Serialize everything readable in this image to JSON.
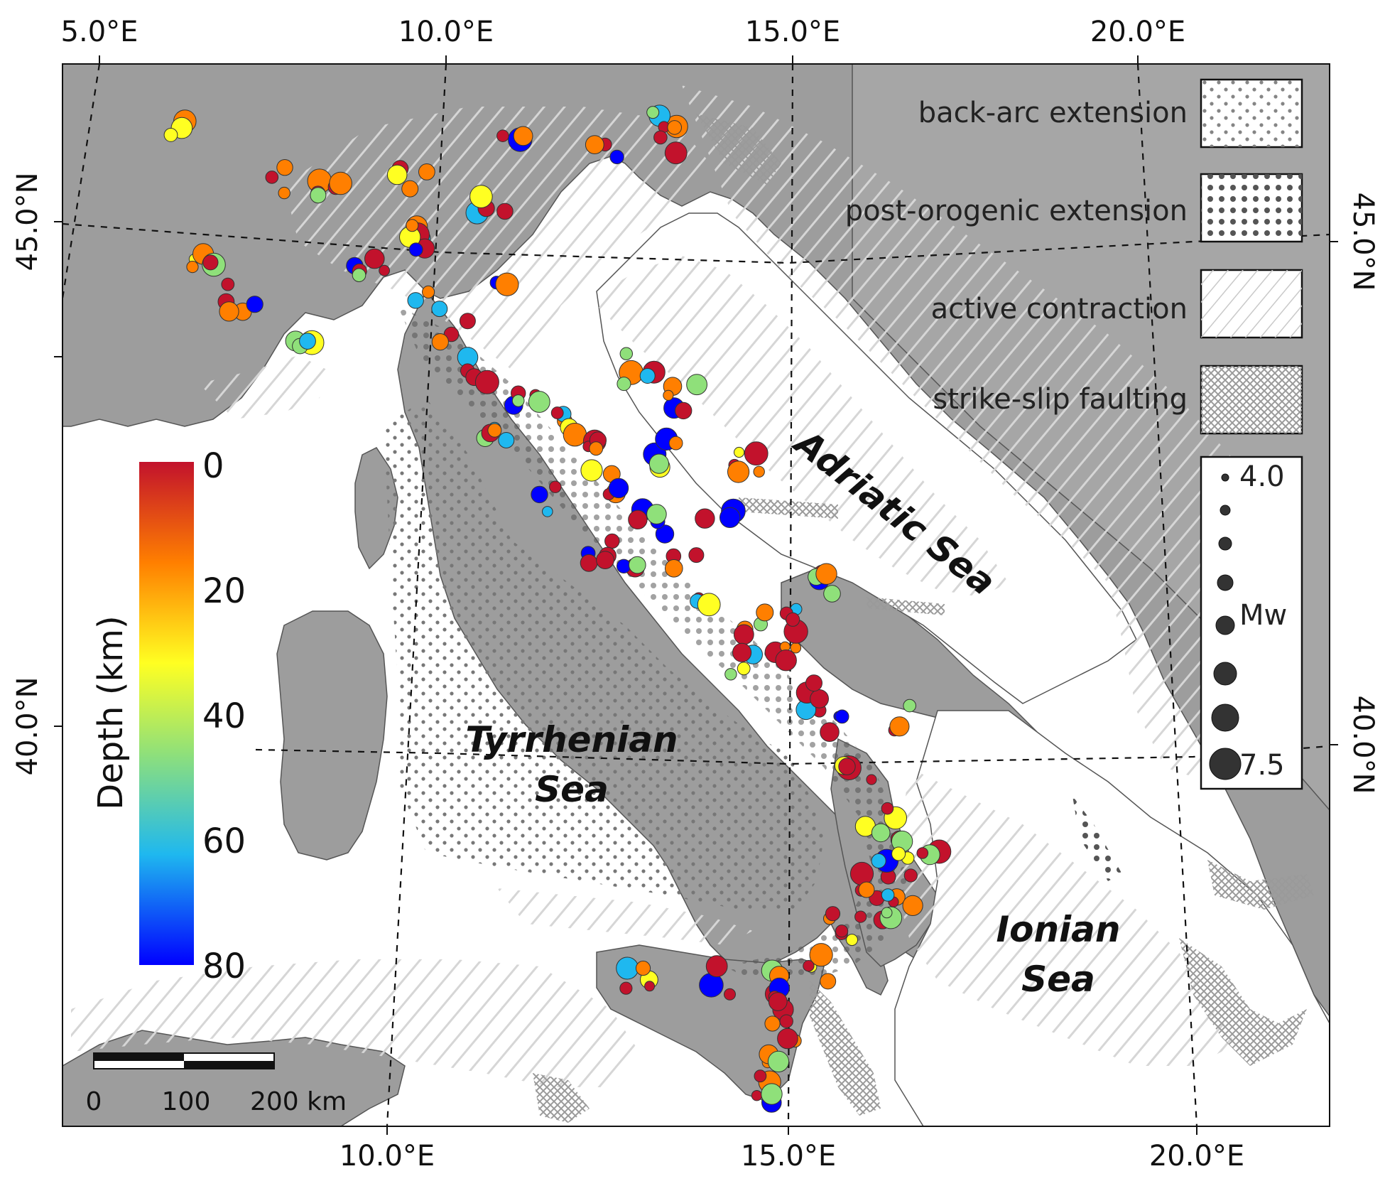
{
  "map": {
    "top_ticks": [
      "5.0°E",
      "10.0°E",
      "15.0°E",
      "20.0°E"
    ],
    "bottom_ticks": [
      "10.0°E",
      "15.0°E",
      "20.0°E"
    ],
    "left_ticks": [
      "45.0°N",
      "40.0°N"
    ],
    "right_ticks": [
      "45.0°N",
      "40.0°N"
    ],
    "seas": {
      "adriatic": "Adriatic Sea",
      "tyrrhenian_line1": "Tyrrhenian",
      "tyrrhenian_line2": "Sea",
      "ionian_line1": "Ionian",
      "ionian_line2": "Sea"
    }
  },
  "legend": {
    "back_arc": "back-arc extension",
    "post_orogenic": "post-orogenic extension",
    "active_contraction": "active contraction",
    "strike_slip": "strike-slip faulting",
    "mw_min": "4.0",
    "mw_label": "Mw",
    "mw_max": "7.5"
  },
  "colorbar": {
    "title": "Depth (km)",
    "ticks": [
      "0",
      "20",
      "40",
      "60",
      "80"
    ],
    "colors": [
      "#c2122c",
      "#ff7f00",
      "#ffff22",
      "#8fe07a",
      "#1fb8ef",
      "#0000ff"
    ]
  },
  "scalebar": {
    "label0": "0",
    "label1": "100",
    "label2": "200 km"
  }
}
